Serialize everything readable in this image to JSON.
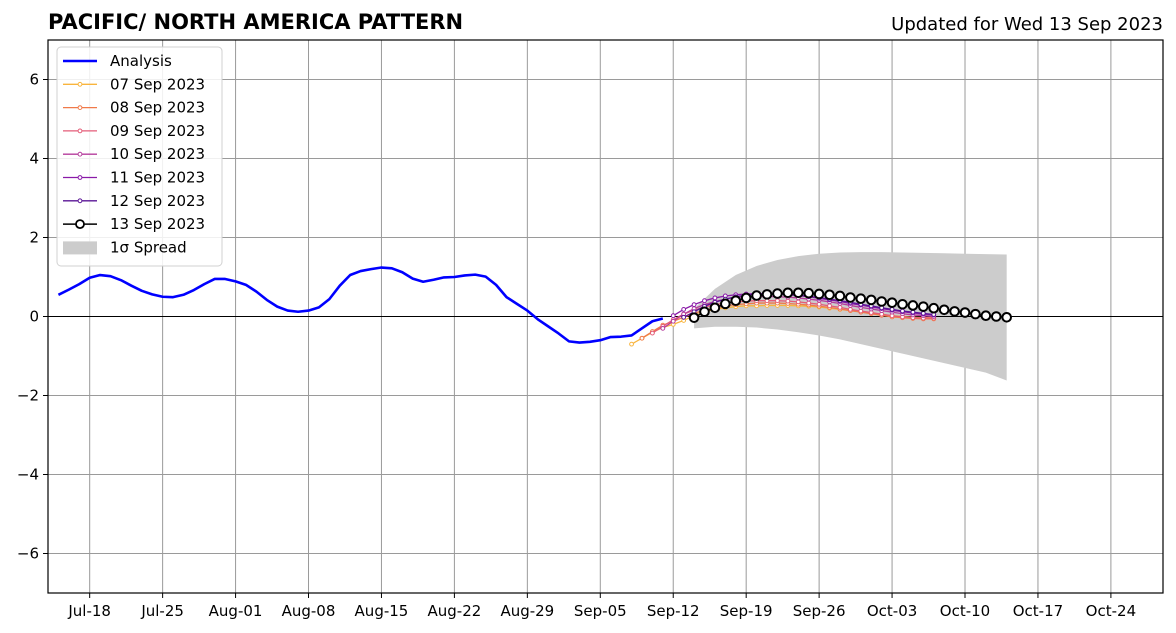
{
  "chart_data": {
    "type": "line",
    "title": "PACIFIC/ NORTH AMERICA PATTERN",
    "subtitle": "Updated for Wed 13 Sep 2023",
    "xlabel": "",
    "ylabel": "",
    "xlim": [
      "2023-07-14",
      "2023-10-29"
    ],
    "ylim": [
      -7,
      7
    ],
    "grid": true,
    "legend_position": "top-left",
    "x_ticks": [
      "Jul-18",
      "Jul-25",
      "Aug-01",
      "Aug-08",
      "Aug-15",
      "Aug-22",
      "Aug-29",
      "Sep-05",
      "Sep-12",
      "Sep-19",
      "Sep-26",
      "Oct-03",
      "Oct-10",
      "Oct-17",
      "Oct-24"
    ],
    "y_ticks": [
      "6",
      "4",
      "2",
      "0",
      "−2",
      "−4",
      "−6"
    ],
    "analysis": {
      "name": "Analysis",
      "color": "#0000ff",
      "start_date": "2023-07-15",
      "values": [
        0.55,
        0.68,
        0.82,
        0.98,
        1.05,
        1.02,
        0.92,
        0.78,
        0.65,
        0.56,
        0.5,
        0.49,
        0.55,
        0.67,
        0.82,
        0.95,
        0.95,
        0.89,
        0.8,
        0.63,
        0.42,
        0.25,
        0.15,
        0.12,
        0.15,
        0.23,
        0.44,
        0.78,
        1.05,
        1.15,
        1.2,
        1.24,
        1.22,
        1.12,
        0.96,
        0.88,
        0.93,
        0.99,
        1.0,
        1.04,
        1.06,
        1.01,
        0.8,
        0.49,
        0.32,
        0.15,
        -0.07,
        -0.25,
        -0.43,
        -0.63,
        -0.66,
        -0.64,
        -0.6,
        -0.52,
        -0.51,
        -0.48,
        -0.3,
        -0.12,
        -0.05
      ]
    },
    "forecasts": [
      {
        "name": "07 Sep 2023",
        "color": "#f9b43c",
        "start_date": "2023-09-08",
        "values": [
          -0.7,
          -0.55,
          -0.4,
          -0.28,
          -0.2,
          -0.1,
          0.02,
          0.12,
          0.18,
          0.22,
          0.25,
          0.27,
          0.27,
          0.28,
          0.28,
          0.28,
          0.27,
          0.26,
          0.24,
          0.21,
          0.18,
          0.15,
          0.12,
          0.08,
          0.05,
          0.02,
          0.0,
          -0.02,
          -0.03,
          -0.03
        ]
      },
      {
        "name": "08 Sep 2023",
        "color": "#f07a4a",
        "start_date": "2023-09-09",
        "values": [
          -0.55,
          -0.38,
          -0.22,
          -0.12,
          -0.02,
          0.08,
          0.16,
          0.22,
          0.27,
          0.3,
          0.32,
          0.34,
          0.34,
          0.34,
          0.33,
          0.31,
          0.29,
          0.26,
          0.23,
          0.19,
          0.15,
          0.11,
          0.07,
          0.03,
          -0.01,
          -0.03,
          -0.05,
          -0.06,
          -0.06
        ]
      },
      {
        "name": "09 Sep 2023",
        "color": "#e45c78",
        "start_date": "2023-09-10",
        "values": [
          -0.42,
          -0.25,
          -0.08,
          0.06,
          0.16,
          0.24,
          0.3,
          0.34,
          0.37,
          0.39,
          0.4,
          0.4,
          0.4,
          0.39,
          0.37,
          0.34,
          0.31,
          0.27,
          0.23,
          0.18,
          0.14,
          0.1,
          0.06,
          0.02,
          -0.01,
          -0.03,
          -0.04,
          -0.04
        ]
      },
      {
        "name": "10 Sep 2023",
        "color": "#b43c9c",
        "start_date": "2023-09-11",
        "values": [
          -0.3,
          -0.12,
          0.06,
          0.2,
          0.3,
          0.38,
          0.44,
          0.48,
          0.5,
          0.51,
          0.51,
          0.5,
          0.49,
          0.47,
          0.44,
          0.41,
          0.37,
          0.33,
          0.28,
          0.23,
          0.19,
          0.15,
          0.11,
          0.07,
          0.04,
          0.02,
          0.0
        ]
      },
      {
        "name": "11 Sep 2023",
        "color": "#8a1aa8",
        "start_date": "2023-09-12",
        "values": [
          0.02,
          0.18,
          0.3,
          0.4,
          0.47,
          0.52,
          0.55,
          0.57,
          0.58,
          0.58,
          0.57,
          0.55,
          0.53,
          0.5,
          0.46,
          0.42,
          0.38,
          0.33,
          0.29,
          0.24,
          0.2,
          0.16,
          0.12,
          0.09,
          0.06,
          0.04
        ]
      },
      {
        "name": "12 Sep 2023",
        "color": "#5a1496",
        "start_date": "2023-09-13",
        "values": [
          -0.02,
          0.12,
          0.26,
          0.36,
          0.44,
          0.5,
          0.54,
          0.56,
          0.57,
          0.57,
          0.56,
          0.54,
          0.51,
          0.48,
          0.44,
          0.4,
          0.36,
          0.31,
          0.27,
          0.22,
          0.18,
          0.14,
          0.11,
          0.08,
          0.05
        ]
      },
      {
        "name": "13 Sep 2023",
        "color": "#000000",
        "start_date": "2023-09-14",
        "values": [
          -0.03,
          0.12,
          0.22,
          0.32,
          0.4,
          0.47,
          0.53,
          0.56,
          0.58,
          0.6,
          0.6,
          0.59,
          0.57,
          0.55,
          0.52,
          0.48,
          0.45,
          0.42,
          0.38,
          0.35,
          0.31,
          0.28,
          0.25,
          0.21,
          0.17,
          0.13,
          0.1,
          0.06,
          0.02,
          0.0,
          -0.02
        ]
      }
    ],
    "spread": {
      "name": "1σ Spread",
      "color": "#cccccc",
      "dates": [
        "2023-09-14",
        "2023-09-16",
        "2023-09-18",
        "2023-09-20",
        "2023-09-22",
        "2023-09-24",
        "2023-09-26",
        "2023-09-28",
        "2023-09-30",
        "2023-10-02",
        "2023-10-04",
        "2023-10-06",
        "2023-10-08",
        "2023-10-10",
        "2023-10-12",
        "2023-10-14"
      ],
      "upper": [
        0.2,
        0.7,
        1.05,
        1.28,
        1.43,
        1.53,
        1.59,
        1.62,
        1.63,
        1.63,
        1.62,
        1.61,
        1.6,
        1.59,
        1.58,
        1.57
      ],
      "lower": [
        -0.3,
        -0.26,
        -0.26,
        -0.28,
        -0.33,
        -0.4,
        -0.48,
        -0.58,
        -0.7,
        -0.82,
        -0.94,
        -1.06,
        -1.18,
        -1.3,
        -1.42,
        -1.62
      ]
    }
  }
}
